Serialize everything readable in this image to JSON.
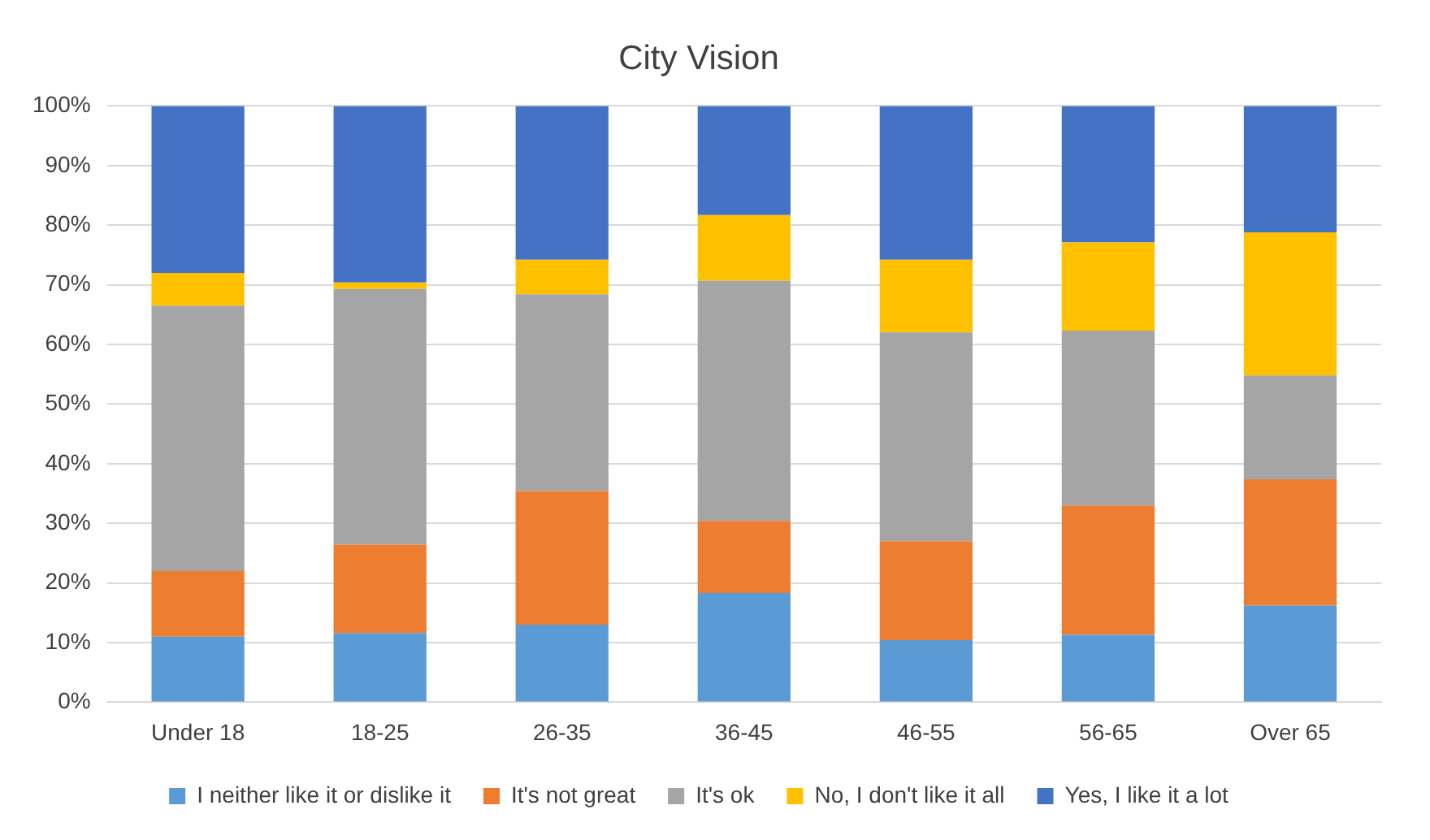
{
  "chart_data": {
    "type": "bar",
    "title": "City Vision",
    "stacked": true,
    "categories": [
      "Under 18",
      "18-25",
      "26-35",
      "36-45",
      "46-55",
      "56-65",
      "Over 65"
    ],
    "series": [
      {
        "name": "I neither like it or dislike it",
        "color": "#5b9bd5",
        "values": [
          11,
          11.6,
          13,
          18.3,
          10.4,
          11.3,
          16.2
        ]
      },
      {
        "name": "It's not great",
        "color": "#ed7d31",
        "values": [
          11,
          14.8,
          22.4,
          12.1,
          16.6,
          21.7,
          21.2
        ]
      },
      {
        "name": "It's ok",
        "color": "#a5a5a5",
        "values": [
          44.5,
          42.9,
          33,
          40.3,
          35,
          29.3,
          17.4
        ]
      },
      {
        "name": "No, I don't like it all",
        "color": "#ffc000",
        "values": [
          5.5,
          1.1,
          5.8,
          11,
          12.2,
          14.8,
          24
        ]
      },
      {
        "name": "Yes, I like it a lot",
        "color": "#4472c4",
        "values": [
          28,
          29.6,
          25.8,
          18.3,
          25.8,
          22.9,
          21.2
        ]
      }
    ],
    "ylim": [
      0,
      100
    ],
    "yticks": [
      {
        "value": 0,
        "label": "0%"
      },
      {
        "value": 10,
        "label": "10%"
      },
      {
        "value": 20,
        "label": "20%"
      },
      {
        "value": 30,
        "label": "30%"
      },
      {
        "value": 40,
        "label": "40%"
      },
      {
        "value": 50,
        "label": "50%"
      },
      {
        "value": 60,
        "label": "60%"
      },
      {
        "value": 70,
        "label": "70%"
      },
      {
        "value": 80,
        "label": "80%"
      },
      {
        "value": 90,
        "label": "90%"
      },
      {
        "value": 100,
        "label": "100%"
      }
    ],
    "grid": "y",
    "legend": "bottom"
  }
}
